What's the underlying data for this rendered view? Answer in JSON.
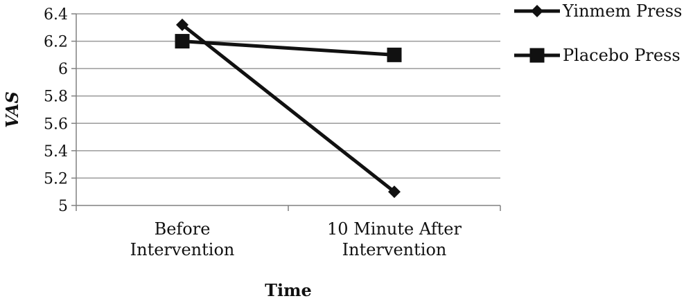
{
  "chart_data": {
    "type": "line",
    "categories": [
      [
        "Before",
        "Intervention"
      ],
      [
        "10 Minute After",
        "Intervention"
      ]
    ],
    "series": [
      {
        "name": "Yinmem Press",
        "marker": "diamond",
        "values": [
          6.32,
          5.1
        ]
      },
      {
        "name": "Placebo Press",
        "marker": "square",
        "values": [
          6.2,
          6.1
        ]
      }
    ],
    "xlabel": "Time",
    "ylabel": "VAS",
    "ylim": [
      5,
      6.4
    ],
    "yticks": [
      "5",
      "5.2",
      "5.4",
      "5.6",
      "5.8",
      "6",
      "6.2",
      "6.4"
    ],
    "grid": "horizontal",
    "legend_position": "right",
    "colors": {
      "line": "#111111",
      "grid": "#9a9a9a",
      "axis": "#808080"
    }
  }
}
